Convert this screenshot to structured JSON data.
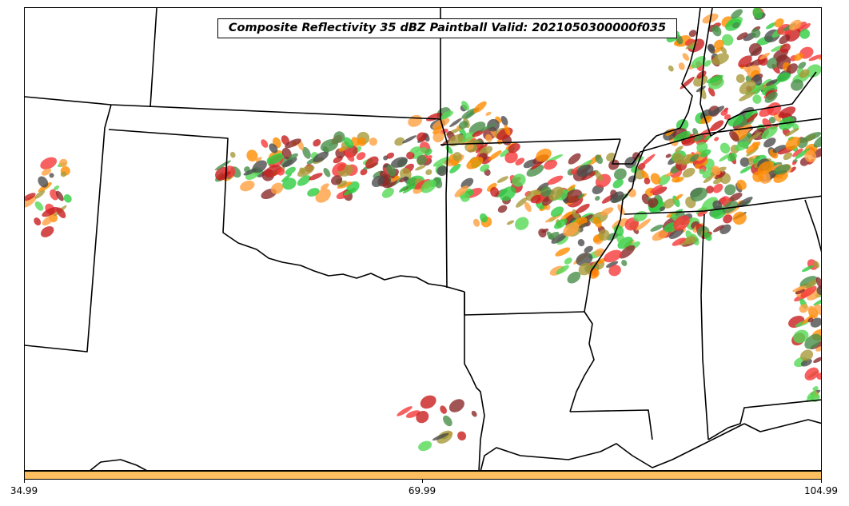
{
  "title": "Composite Reflectivity 35 dBZ Paintball Valid: 2021050300000f035",
  "colorbar": {
    "color": "#fdbf60",
    "ticks": [
      "34.99",
      "69.99",
      "104.99"
    ]
  },
  "ensemble_colors": [
    "#c81e1e",
    "#ff8c00",
    "#2ecc40",
    "#55d855",
    "#4a8f4a",
    "#8b2a2a",
    "#a89a3a",
    "#4d4d4d",
    "#f53a3a",
    "#ffa040"
  ]
}
